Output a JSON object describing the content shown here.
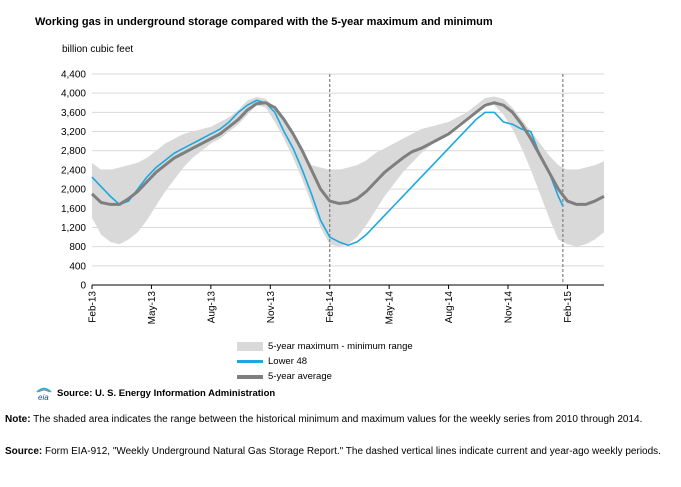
{
  "chart_data": {
    "type": "area",
    "title": "Working gas in underground storage compared with the  5-year maximum and minimum",
    "ylabel": "billion  cubic feet",
    "ylim": [
      0,
      4400
    ],
    "y_ticks": [
      "0",
      "400",
      "800",
      "1,200",
      "1,600",
      "2,000",
      "2,400",
      "2,800",
      "3,200",
      "3,600",
      "4,000",
      "4,400"
    ],
    "x_ticks": [
      "Feb-13",
      "May-13",
      "Aug-13",
      "Nov-13",
      "Feb-14",
      "May-14",
      "Aug-14",
      "Nov-14",
      "Feb-15"
    ],
    "xlim_weeks": [
      0,
      112
    ],
    "x_tick_weeks": [
      0,
      13,
      26,
      39,
      52,
      65,
      78,
      91,
      104
    ],
    "dashed_lines_weeks": [
      52,
      103
    ],
    "grid": "horizontal",
    "series": [
      {
        "name": "5-year maximum - minimum range",
        "color": "#d9d9d9",
        "x": [
          0,
          2,
          4,
          6,
          8,
          10,
          12,
          14,
          16,
          18,
          20,
          22,
          24,
          26,
          28,
          30,
          32,
          34,
          36,
          38,
          40,
          42,
          44,
          46,
          48,
          50,
          52,
          54,
          56,
          58,
          60,
          62,
          64,
          66,
          68,
          70,
          72,
          74,
          76,
          78,
          80,
          82,
          84,
          86,
          88,
          90,
          92,
          94,
          96,
          98,
          100,
          102,
          104,
          106,
          108,
          110,
          112
        ],
        "upper": [
          2550,
          2400,
          2400,
          2450,
          2500,
          2550,
          2650,
          2800,
          2950,
          3050,
          3150,
          3200,
          3250,
          3300,
          3400,
          3500,
          3650,
          3850,
          3920,
          3880,
          3700,
          3400,
          3100,
          2800,
          2500,
          2450,
          2400,
          2400,
          2450,
          2500,
          2600,
          2750,
          2850,
          2950,
          3050,
          3150,
          3250,
          3300,
          3350,
          3400,
          3500,
          3600,
          3750,
          3900,
          3930,
          3880,
          3700,
          3450,
          3200,
          2950,
          2700,
          2500,
          2400,
          2400,
          2450,
          2500,
          2580
        ],
        "lower": [
          1400,
          1050,
          900,
          850,
          950,
          1100,
          1350,
          1650,
          1950,
          2200,
          2450,
          2650,
          2800,
          2950,
          3050,
          3200,
          3350,
          3550,
          3750,
          3700,
          3400,
          3050,
          2650,
          2200,
          1700,
          1200,
          850,
          800,
          850,
          1000,
          1250,
          1550,
          1850,
          2100,
          2350,
          2550,
          2750,
          2900,
          3050,
          3200,
          3350,
          3500,
          3650,
          3800,
          3750,
          3550,
          3250,
          2850,
          2400,
          1900,
          1400,
          950,
          850,
          800,
          850,
          950,
          1100
        ]
      },
      {
        "name": "Lower 48",
        "color": "#1ba8e0",
        "x": [
          0,
          2,
          3,
          4,
          6,
          8,
          10,
          12,
          14,
          16,
          18,
          20,
          22,
          24,
          26,
          28,
          30,
          32,
          34,
          36,
          38,
          40,
          42,
          44,
          46,
          48,
          50,
          52,
          53,
          54,
          56,
          58,
          60,
          62,
          64,
          66,
          68,
          70,
          72,
          74,
          76,
          78,
          80,
          82,
          84,
          86,
          88,
          90,
          92,
          94,
          96,
          98,
          100,
          102,
          103
        ],
        "values": [
          2250,
          2050,
          1950,
          1850,
          1680,
          1750,
          2000,
          2250,
          2450,
          2600,
          2750,
          2850,
          2950,
          3050,
          3150,
          3250,
          3400,
          3600,
          3750,
          3850,
          3800,
          3600,
          3200,
          2850,
          2400,
          1900,
          1350,
          1000,
          950,
          900,
          830,
          900,
          1050,
          1250,
          1450,
          1650,
          1850,
          2050,
          2250,
          2450,
          2650,
          2850,
          3050,
          3250,
          3450,
          3600,
          3600,
          3400,
          3350,
          3250,
          3200,
          2700,
          2350,
          1850,
          1650
        ]
      },
      {
        "name": "5-year average",
        "color": "#7f7f7f",
        "x": [
          0,
          2,
          4,
          6,
          8,
          10,
          12,
          14,
          16,
          18,
          20,
          22,
          24,
          26,
          28,
          30,
          32,
          34,
          36,
          38,
          40,
          42,
          44,
          46,
          48,
          50,
          52,
          54,
          56,
          58,
          60,
          62,
          64,
          66,
          68,
          70,
          72,
          74,
          76,
          78,
          80,
          82,
          84,
          86,
          88,
          90,
          92,
          94,
          96,
          98,
          100,
          102,
          104,
          106,
          108,
          110,
          112
        ],
        "values": [
          1900,
          1720,
          1680,
          1680,
          1800,
          1950,
          2150,
          2350,
          2500,
          2650,
          2750,
          2850,
          2950,
          3050,
          3150,
          3300,
          3450,
          3650,
          3780,
          3800,
          3700,
          3450,
          3150,
          2800,
          2400,
          2000,
          1750,
          1700,
          1720,
          1800,
          1950,
          2150,
          2350,
          2500,
          2650,
          2780,
          2850,
          2950,
          3050,
          3150,
          3300,
          3450,
          3600,
          3750,
          3800,
          3750,
          3600,
          3350,
          3050,
          2700,
          2350,
          2000,
          1750,
          1680,
          1680,
          1750,
          1850
        ]
      }
    ]
  },
  "legend": {
    "band_label": "5-year maximum - minimum range",
    "lower48_label": "Lower 48",
    "avg_label": "5-year average"
  },
  "source": {
    "logo_text": "eia",
    "label": "Source:  U. S. Energy Information Administration"
  },
  "notes": {
    "note_label": "Note:",
    "note_text": "The shaded area indicates the range between the historical minimum and maximum values for the weekly series from 2010 through 2014.",
    "source_label": "Source:",
    "source_text": "Form EIA-912, \"Weekly Underground Natural Gas Storage Report.\" The dashed vertical lines indicate current and year-ago weekly periods."
  }
}
